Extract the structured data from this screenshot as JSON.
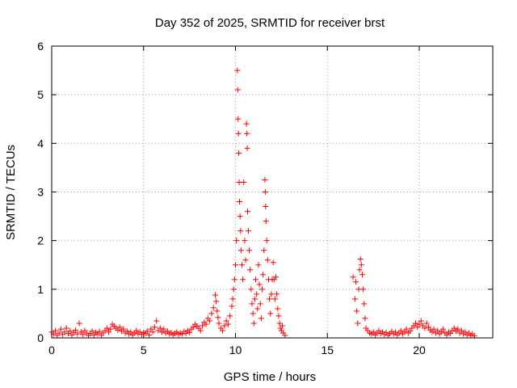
{
  "chart_data": {
    "type": "scatter",
    "title": "Day 352 of 2025, SRMTID for receiver brst",
    "xlabel": "GPS time / hours",
    "ylabel": "SRMTID / TECUs",
    "xlim": [
      0,
      24
    ],
    "ylim": [
      0,
      6
    ],
    "xticks": [
      0,
      5,
      10,
      15,
      20
    ],
    "yticks": [
      0,
      1,
      2,
      3,
      4,
      5,
      6
    ],
    "grid": true,
    "marker": "+",
    "color": "#ff0000",
    "series": [
      {
        "name": "SRMTID",
        "points": [
          [
            0.0,
            0.12
          ],
          [
            0.1,
            0.08
          ],
          [
            0.2,
            0.15
          ],
          [
            0.3,
            0.05
          ],
          [
            0.4,
            0.1
          ],
          [
            0.5,
            0.18
          ],
          [
            0.6,
            0.07
          ],
          [
            0.7,
            0.12
          ],
          [
            0.8,
            0.2
          ],
          [
            0.9,
            0.09
          ],
          [
            1.0,
            0.14
          ],
          [
            1.1,
            0.06
          ],
          [
            1.2,
            0.11
          ],
          [
            1.3,
            0.16
          ],
          [
            1.4,
            0.08
          ],
          [
            1.5,
            0.3
          ],
          [
            1.6,
            0.12
          ],
          [
            1.7,
            0.07
          ],
          [
            1.8,
            0.15
          ],
          [
            1.9,
            0.1
          ],
          [
            2.0,
            0.05
          ],
          [
            2.1,
            0.09
          ],
          [
            2.2,
            0.14
          ],
          [
            2.3,
            0.06
          ],
          [
            2.4,
            0.11
          ],
          [
            2.5,
            0.08
          ],
          [
            2.6,
            0.13
          ],
          [
            2.7,
            0.05
          ],
          [
            2.8,
            0.1
          ],
          [
            2.9,
            0.15
          ],
          [
            3.0,
            0.2
          ],
          [
            3.1,
            0.12
          ],
          [
            3.2,
            0.18
          ],
          [
            3.3,
            0.28
          ],
          [
            3.4,
            0.24
          ],
          [
            3.5,
            0.2
          ],
          [
            3.6,
            0.16
          ],
          [
            3.7,
            0.22
          ],
          [
            3.8,
            0.14
          ],
          [
            3.9,
            0.18
          ],
          [
            4.0,
            0.1
          ],
          [
            4.1,
            0.14
          ],
          [
            4.2,
            0.08
          ],
          [
            4.3,
            0.12
          ],
          [
            4.4,
            0.06
          ],
          [
            4.5,
            0.1
          ],
          [
            4.6,
            0.15
          ],
          [
            4.7,
            0.08
          ],
          [
            4.8,
            0.12
          ],
          [
            4.9,
            0.07
          ],
          [
            5.0,
            0.11
          ],
          [
            5.1,
            0.09
          ],
          [
            5.2,
            0.14
          ],
          [
            5.3,
            0.06
          ],
          [
            5.4,
            0.18
          ],
          [
            5.5,
            0.12
          ],
          [
            5.6,
            0.22
          ],
          [
            5.7,
            0.35
          ],
          [
            5.8,
            0.15
          ],
          [
            5.9,
            0.2
          ],
          [
            6.0,
            0.12
          ],
          [
            6.1,
            0.18
          ],
          [
            6.2,
            0.1
          ],
          [
            6.3,
            0.14
          ],
          [
            6.4,
            0.08
          ],
          [
            6.5,
            0.11
          ],
          [
            6.6,
            0.06
          ],
          [
            6.7,
            0.09
          ],
          [
            6.8,
            0.12
          ],
          [
            6.9,
            0.07
          ],
          [
            7.0,
            0.1
          ],
          [
            7.1,
            0.08
          ],
          [
            7.2,
            0.13
          ],
          [
            7.3,
            0.09
          ],
          [
            7.4,
            0.15
          ],
          [
            7.5,
            0.11
          ],
          [
            7.6,
            0.18
          ],
          [
            7.7,
            0.22
          ],
          [
            7.8,
            0.28
          ],
          [
            7.9,
            0.24
          ],
          [
            8.0,
            0.2
          ],
          [
            8.1,
            0.15
          ],
          [
            8.2,
            0.25
          ],
          [
            8.3,
            0.32
          ],
          [
            8.4,
            0.28
          ],
          [
            8.5,
            0.4
          ],
          [
            8.6,
            0.35
          ],
          [
            8.7,
            0.5
          ],
          [
            8.8,
            0.62
          ],
          [
            8.9,
            0.88
          ],
          [
            8.95,
            0.75
          ],
          [
            9.0,
            0.55
          ],
          [
            9.05,
            0.42
          ],
          [
            9.1,
            0.3
          ],
          [
            9.2,
            0.2
          ],
          [
            9.3,
            0.15
          ],
          [
            9.4,
            0.25
          ],
          [
            9.5,
            0.35
          ],
          [
            9.6,
            0.28
          ],
          [
            9.7,
            0.45
          ],
          [
            9.8,
            0.65
          ],
          [
            9.85,
            0.8
          ],
          [
            9.9,
            1.0
          ],
          [
            9.95,
            1.2
          ],
          [
            10.0,
            1.5
          ],
          [
            10.05,
            2.0
          ],
          [
            10.1,
            5.5
          ],
          [
            10.12,
            5.1
          ],
          [
            10.14,
            4.5
          ],
          [
            10.16,
            4.2
          ],
          [
            10.18,
            3.8
          ],
          [
            10.2,
            3.2
          ],
          [
            10.22,
            2.8
          ],
          [
            10.25,
            2.5
          ],
          [
            10.28,
            2.2
          ],
          [
            10.3,
            1.8
          ],
          [
            10.35,
            1.5
          ],
          [
            10.4,
            1.2
          ],
          [
            10.45,
            3.2
          ],
          [
            10.5,
            2.0
          ],
          [
            10.55,
            1.6
          ],
          [
            10.6,
            4.4
          ],
          [
            10.62,
            4.2
          ],
          [
            10.64,
            3.9
          ],
          [
            10.66,
            2.6
          ],
          [
            10.7,
            2.2
          ],
          [
            10.75,
            1.8
          ],
          [
            10.8,
            1.4
          ],
          [
            10.85,
            1.0
          ],
          [
            10.9,
            0.7
          ],
          [
            10.95,
            0.5
          ],
          [
            11.0,
            0.3
          ],
          [
            11.05,
            0.8
          ],
          [
            11.1,
            1.2
          ],
          [
            11.15,
            0.9
          ],
          [
            11.2,
            0.6
          ],
          [
            11.25,
            1.5
          ],
          [
            11.3,
            1.1
          ],
          [
            11.35,
            0.7
          ],
          [
            11.4,
            0.4
          ],
          [
            11.45,
            1.0
          ],
          [
            11.5,
            1.3
          ],
          [
            11.55,
            1.8
          ],
          [
            11.6,
            3.25
          ],
          [
            11.62,
            3.0
          ],
          [
            11.64,
            2.7
          ],
          [
            11.66,
            2.4
          ],
          [
            11.7,
            2.0
          ],
          [
            11.75,
            1.6
          ],
          [
            11.8,
            1.2
          ],
          [
            11.85,
            0.8
          ],
          [
            11.9,
            0.5
          ],
          [
            11.95,
            0.9
          ],
          [
            12.0,
            1.2
          ],
          [
            12.05,
            1.55
          ],
          [
            12.1,
            1.2
          ],
          [
            12.15,
            0.8
          ],
          [
            12.2,
            1.25
          ],
          [
            12.25,
            0.9
          ],
          [
            12.3,
            0.6
          ],
          [
            12.35,
            0.45
          ],
          [
            12.4,
            0.3
          ],
          [
            12.45,
            0.2
          ],
          [
            12.5,
            0.15
          ],
          [
            12.55,
            0.25
          ],
          [
            12.6,
            0.1
          ],
          [
            12.7,
            0.05
          ],
          [
            16.4,
            1.25
          ],
          [
            16.5,
            0.8
          ],
          [
            16.55,
            1.15
          ],
          [
            16.6,
            0.55
          ],
          [
            16.65,
            0.3
          ],
          [
            16.7,
            1.0
          ],
          [
            16.75,
            1.4
          ],
          [
            16.8,
            1.62
          ],
          [
            16.85,
            1.5
          ],
          [
            16.9,
            1.3
          ],
          [
            16.95,
            1.0
          ],
          [
            17.0,
            0.7
          ],
          [
            17.05,
            0.4
          ],
          [
            17.1,
            0.2
          ],
          [
            17.2,
            0.15
          ],
          [
            17.3,
            0.1
          ],
          [
            17.4,
            0.08
          ],
          [
            17.5,
            0.12
          ],
          [
            17.6,
            0.06
          ],
          [
            17.7,
            0.1
          ],
          [
            17.8,
            0.15
          ],
          [
            17.9,
            0.09
          ],
          [
            18.0,
            0.12
          ],
          [
            18.1,
            0.07
          ],
          [
            18.2,
            0.11
          ],
          [
            18.3,
            0.05
          ],
          [
            18.4,
            0.09
          ],
          [
            18.5,
            0.13
          ],
          [
            18.6,
            0.08
          ],
          [
            18.7,
            0.12
          ],
          [
            18.8,
            0.06
          ],
          [
            18.9,
            0.1
          ],
          [
            19.0,
            0.15
          ],
          [
            19.1,
            0.08
          ],
          [
            19.2,
            0.12
          ],
          [
            19.3,
            0.18
          ],
          [
            19.4,
            0.1
          ],
          [
            19.5,
            0.14
          ],
          [
            19.6,
            0.2
          ],
          [
            19.7,
            0.25
          ],
          [
            19.8,
            0.3
          ],
          [
            19.9,
            0.22
          ],
          [
            20.0,
            0.28
          ],
          [
            20.1,
            0.35
          ],
          [
            20.2,
            0.25
          ],
          [
            20.3,
            0.2
          ],
          [
            20.4,
            0.3
          ],
          [
            20.5,
            0.22
          ],
          [
            20.6,
            0.16
          ],
          [
            20.7,
            0.12
          ],
          [
            20.8,
            0.18
          ],
          [
            20.9,
            0.1
          ],
          [
            21.0,
            0.15
          ],
          [
            21.1,
            0.08
          ],
          [
            21.2,
            0.12
          ],
          [
            21.3,
            0.18
          ],
          [
            21.4,
            0.1
          ],
          [
            21.5,
            0.06
          ],
          [
            21.6,
            0.12
          ],
          [
            21.7,
            0.09
          ],
          [
            21.8,
            0.15
          ],
          [
            21.9,
            0.2
          ],
          [
            22.0,
            0.14
          ],
          [
            22.1,
            0.18
          ],
          [
            22.2,
            0.1
          ],
          [
            22.3,
            0.15
          ],
          [
            22.4,
            0.08
          ],
          [
            22.5,
            0.12
          ],
          [
            22.6,
            0.06
          ],
          [
            22.7,
            0.1
          ],
          [
            22.8,
            0.05
          ],
          [
            22.9,
            0.08
          ],
          [
            23.0,
            0.04
          ]
        ]
      }
    ]
  }
}
